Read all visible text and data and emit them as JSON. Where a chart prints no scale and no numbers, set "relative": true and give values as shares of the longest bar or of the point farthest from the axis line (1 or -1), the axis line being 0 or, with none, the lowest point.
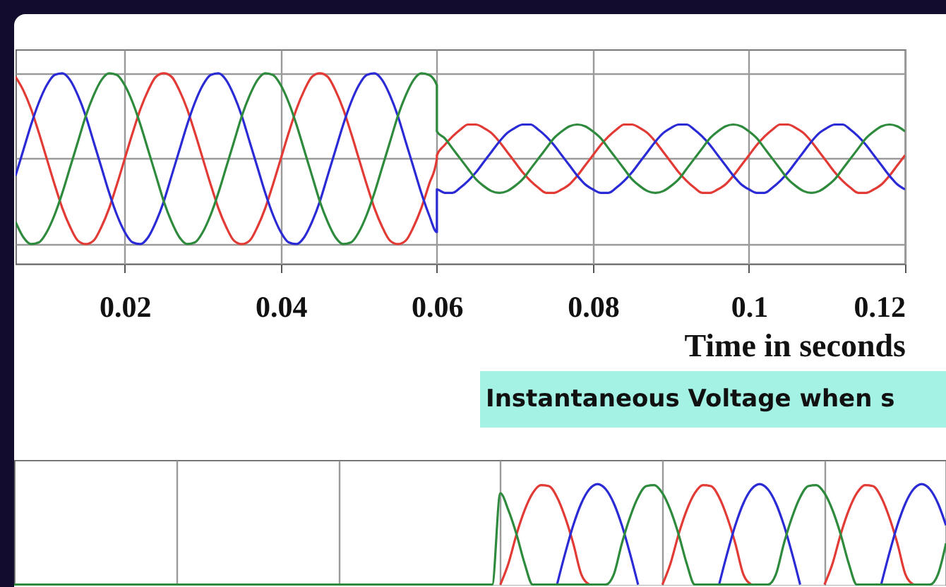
{
  "chart_data": [
    {
      "type": "line",
      "relative": true,
      "xlabel": "Time in seconds",
      "annotations": [
        "Instantaneous Voltage when s"
      ],
      "grid": true,
      "tick_labels": "x",
      "xlim": [
        0.006,
        0.12
      ],
      "xticks": [
        0.02,
        0.04,
        0.06,
        0.08,
        0.1,
        0.12
      ],
      "x": [
        0.006,
        0.007,
        0.008,
        0.009,
        0.01,
        0.011,
        0.012,
        0.013,
        0.014,
        0.015,
        0.016,
        0.017,
        0.018,
        0.019,
        0.02,
        0.021,
        0.022,
        0.023,
        0.024,
        0.025,
        0.026,
        0.027,
        0.028,
        0.029,
        0.03,
        0.031,
        0.032,
        0.033,
        0.034,
        0.035,
        0.036,
        0.037,
        0.038,
        0.039,
        0.04,
        0.041,
        0.042,
        0.043,
        0.044,
        0.045,
        0.046,
        0.047,
        0.048,
        0.049,
        0.05,
        0.051,
        0.052,
        0.053,
        0.054,
        0.055,
        0.056,
        0.057,
        0.058,
        0.059,
        0.06,
        0.06,
        0.061,
        0.062,
        0.063,
        0.064,
        0.065,
        0.066,
        0.067,
        0.068,
        0.069,
        0.07,
        0.071,
        0.072,
        0.073,
        0.074,
        0.075,
        0.076,
        0.077,
        0.078,
        0.079,
        0.08,
        0.081,
        0.082,
        0.083,
        0.084,
        0.085,
        0.086,
        0.087,
        0.088,
        0.089,
        0.09,
        0.091,
        0.092,
        0.093,
        0.094,
        0.095,
        0.096,
        0.097,
        0.098,
        0.099,
        0.1,
        0.101,
        0.102,
        0.103,
        0.104,
        0.105,
        0.106,
        0.107,
        0.108,
        0.109,
        0.11,
        0.111,
        0.112,
        0.113,
        0.114,
        0.115,
        0.116,
        0.117,
        0.118,
        0.119,
        0.12
      ],
      "series": [
        {
          "color": "#e23b35",
          "values": [
            0.98,
            0.9,
            0.79,
            0.65,
            0.5,
            0.35,
            0.21,
            0.1,
            0.02,
            0.0,
            0.02,
            0.1,
            0.21,
            0.35,
            0.5,
            0.65,
            0.79,
            0.9,
            0.98,
            1.0,
            0.98,
            0.9,
            0.79,
            0.65,
            0.5,
            0.35,
            0.21,
            0.1,
            0.02,
            0.0,
            0.02,
            0.1,
            0.21,
            0.35,
            0.5,
            0.65,
            0.79,
            0.9,
            0.98,
            1.0,
            0.98,
            0.9,
            0.79,
            0.65,
            0.5,
            0.35,
            0.21,
            0.1,
            0.02,
            0.0,
            0.02,
            0.1,
            0.21,
            0.35,
            0.5,
            0.52,
            0.58,
            0.63,
            0.67,
            0.7,
            0.7,
            0.68,
            0.65,
            0.6,
            0.54,
            0.48,
            0.42,
            0.37,
            0.33,
            0.3,
            0.3,
            0.32,
            0.35,
            0.4,
            0.46,
            0.52,
            0.58,
            0.63,
            0.67,
            0.7,
            0.7,
            0.68,
            0.65,
            0.6,
            0.54,
            0.48,
            0.42,
            0.37,
            0.33,
            0.3,
            0.3,
            0.32,
            0.35,
            0.4,
            0.46,
            0.52,
            0.58,
            0.63,
            0.67,
            0.7,
            0.7,
            0.68,
            0.65,
            0.6,
            0.54,
            0.48,
            0.42,
            0.37,
            0.33,
            0.3,
            0.3,
            0.32,
            0.35,
            0.4,
            0.46,
            0.52
          ]
        },
        {
          "color": "#2b2bd6",
          "values": [
            0.4,
            0.55,
            0.7,
            0.83,
            0.93,
            0.99,
            1.0,
            0.96,
            0.87,
            0.75,
            0.6,
            0.45,
            0.3,
            0.17,
            0.07,
            0.01,
            0.0,
            0.04,
            0.13,
            0.25,
            0.4,
            0.55,
            0.7,
            0.83,
            0.93,
            0.99,
            1.0,
            0.96,
            0.87,
            0.75,
            0.6,
            0.45,
            0.3,
            0.17,
            0.07,
            0.01,
            0.0,
            0.04,
            0.13,
            0.25,
            0.4,
            0.55,
            0.7,
            0.83,
            0.93,
            0.99,
            1.0,
            0.96,
            0.87,
            0.75,
            0.6,
            0.45,
            0.3,
            0.17,
            0.07,
            0.32,
            0.3,
            0.3,
            0.33,
            0.37,
            0.42,
            0.48,
            0.54,
            0.6,
            0.65,
            0.68,
            0.7,
            0.7,
            0.67,
            0.63,
            0.58,
            0.52,
            0.46,
            0.4,
            0.35,
            0.32,
            0.3,
            0.3,
            0.33,
            0.37,
            0.42,
            0.48,
            0.54,
            0.6,
            0.65,
            0.68,
            0.7,
            0.7,
            0.67,
            0.63,
            0.58,
            0.52,
            0.46,
            0.4,
            0.35,
            0.32,
            0.3,
            0.3,
            0.33,
            0.37,
            0.42,
            0.48,
            0.54,
            0.6,
            0.65,
            0.68,
            0.7,
            0.7,
            0.67,
            0.63,
            0.58,
            0.52,
            0.46,
            0.4,
            0.35,
            0.32
          ]
        },
        {
          "color": "#2e8a3c",
          "values": [
            0.13,
            0.04,
            0.0,
            0.01,
            0.07,
            0.17,
            0.3,
            0.45,
            0.6,
            0.75,
            0.87,
            0.96,
            1.0,
            0.99,
            0.93,
            0.83,
            0.7,
            0.55,
            0.4,
            0.25,
            0.13,
            0.04,
            0.0,
            0.01,
            0.07,
            0.17,
            0.3,
            0.45,
            0.6,
            0.75,
            0.87,
            0.96,
            1.0,
            0.99,
            0.93,
            0.83,
            0.7,
            0.55,
            0.4,
            0.25,
            0.13,
            0.04,
            0.0,
            0.01,
            0.07,
            0.17,
            0.3,
            0.45,
            0.6,
            0.75,
            0.87,
            0.96,
            1.0,
            0.99,
            0.93,
            0.66,
            0.62,
            0.56,
            0.5,
            0.44,
            0.38,
            0.34,
            0.31,
            0.3,
            0.31,
            0.34,
            0.38,
            0.44,
            0.5,
            0.56,
            0.62,
            0.66,
            0.69,
            0.7,
            0.69,
            0.66,
            0.62,
            0.56,
            0.5,
            0.44,
            0.38,
            0.34,
            0.31,
            0.3,
            0.31,
            0.34,
            0.38,
            0.44,
            0.5,
            0.56,
            0.62,
            0.66,
            0.69,
            0.7,
            0.69,
            0.66,
            0.62,
            0.56,
            0.5,
            0.44,
            0.38,
            0.34,
            0.31,
            0.3,
            0.31,
            0.34,
            0.38,
            0.44,
            0.5,
            0.56,
            0.62,
            0.66,
            0.69,
            0.7,
            0.69,
            0.66
          ]
        }
      ]
    },
    {
      "type": "line",
      "relative": true,
      "grid": "x",
      "tick_labels": false,
      "categories": [
        null,
        null,
        null,
        null,
        null,
        null,
        null,
        null,
        null,
        null,
        null,
        null,
        null,
        null,
        null,
        null,
        null,
        null,
        null,
        null,
        null,
        null,
        null,
        null,
        null,
        null,
        null,
        null,
        null,
        null,
        null,
        null,
        null,
        null,
        null,
        null,
        null,
        null,
        null,
        null,
        null,
        null,
        null,
        null,
        null,
        null,
        null,
        null,
        null,
        null,
        null,
        null,
        null,
        null,
        null,
        null,
        null,
        null,
        null,
        null,
        null,
        null,
        null,
        null,
        null,
        null,
        null,
        null,
        null,
        null,
        null,
        null,
        null,
        null,
        null,
        null,
        null,
        null,
        null,
        null,
        null,
        null,
        null,
        null,
        null,
        null,
        null,
        null,
        null,
        null,
        null,
        null,
        null,
        null,
        null,
        null,
        null,
        null,
        null,
        null,
        null,
        null,
        null,
        null,
        null,
        null,
        null,
        null,
        null,
        null,
        null,
        null,
        null,
        null,
        null,
        null
      ],
      "series": [
        {
          "color": "#e23b35",
          "values": [
            null,
            null,
            null,
            null,
            null,
            null,
            null,
            null,
            null,
            null,
            null,
            null,
            null,
            null,
            null,
            null,
            null,
            null,
            null,
            null,
            null,
            null,
            null,
            null,
            null,
            null,
            null,
            null,
            null,
            null,
            null,
            null,
            null,
            null,
            null,
            null,
            null,
            null,
            null,
            null,
            null,
            null,
            null,
            null,
            null,
            null,
            null,
            null,
            null,
            null,
            null,
            null,
            null,
            null,
            null,
            null,
            null,
            null,
            null,
            null,
            0,
            0.21,
            0.5,
            0.74,
            0.91,
            0.99,
            0.98,
            0.87,
            0.67,
            0.41,
            0.1,
            0,
            null,
            null,
            null,
            null,
            null,
            null,
            null,
            null,
            0,
            0.21,
            0.5,
            0.74,
            0.91,
            0.99,
            0.98,
            0.87,
            0.67,
            0.41,
            0.1,
            0,
            null,
            null,
            null,
            null,
            null,
            null,
            null,
            null,
            0,
            0.21,
            0.5,
            0.74,
            0.91,
            0.99,
            0.98,
            0.87,
            0.67,
            0.41,
            0.1,
            0,
            null,
            null,
            null,
            null
          ]
        },
        {
          "color": "#2b2bd6",
          "values": [
            null,
            null,
            null,
            null,
            null,
            null,
            null,
            null,
            null,
            null,
            null,
            null,
            null,
            null,
            null,
            null,
            null,
            null,
            null,
            null,
            null,
            null,
            null,
            null,
            null,
            null,
            null,
            null,
            null,
            null,
            null,
            null,
            null,
            null,
            null,
            null,
            null,
            null,
            null,
            null,
            null,
            null,
            null,
            null,
            null,
            null,
            null,
            null,
            null,
            null,
            null,
            null,
            null,
            null,
            null,
            null,
            null,
            null,
            null,
            null,
            null,
            null,
            null,
            null,
            null,
            null,
            null,
            0,
            0.31,
            0.59,
            0.81,
            0.95,
            1.0,
            0.95,
            0.81,
            0.59,
            0.31,
            0,
            null,
            null,
            null,
            null,
            null,
            null,
            null,
            null,
            null,
            0,
            0.31,
            0.59,
            0.81,
            0.95,
            1.0,
            0.95,
            0.81,
            0.59,
            0.31,
            0,
            null,
            null,
            null,
            null,
            null,
            null,
            null,
            null,
            null,
            0,
            0.31,
            0.59,
            0.81,
            0.95,
            1.0,
            0.95,
            0.81,
            0.59
          ]
        },
        {
          "color": "#2e8a3c",
          "values": [
            0,
            0,
            0,
            0,
            0,
            0,
            0,
            0,
            0,
            0,
            0,
            0,
            0,
            0,
            0,
            0,
            0,
            0,
            0,
            0,
            0,
            0,
            0,
            0,
            0,
            0,
            0,
            0,
            0,
            0,
            0,
            0,
            0,
            0,
            0,
            0,
            0,
            0,
            0,
            0,
            0,
            0,
            0,
            0,
            0,
            0,
            0,
            0,
            0,
            0,
            0,
            0,
            0,
            0,
            0,
            0,
            0,
            0,
            0,
            0,
            0.91,
            0.74,
            0.5,
            0.21,
            0,
            0,
            0,
            0,
            0,
            0,
            0,
            0,
            0,
            0,
            0.1,
            0.41,
            0.67,
            0.87,
            0.98,
            0.99,
            0.91,
            0.74,
            0.5,
            0.21,
            0,
            0,
            0,
            0,
            0,
            0,
            0,
            0,
            0,
            0,
            0.1,
            0.41,
            0.67,
            0.87,
            0.98,
            0.99,
            0.91,
            0.74,
            0.5,
            0.21,
            0,
            0,
            0,
            0,
            0,
            0,
            0,
            0,
            0,
            0,
            0.1,
            0.41
          ]
        }
      ]
    }
  ]
}
